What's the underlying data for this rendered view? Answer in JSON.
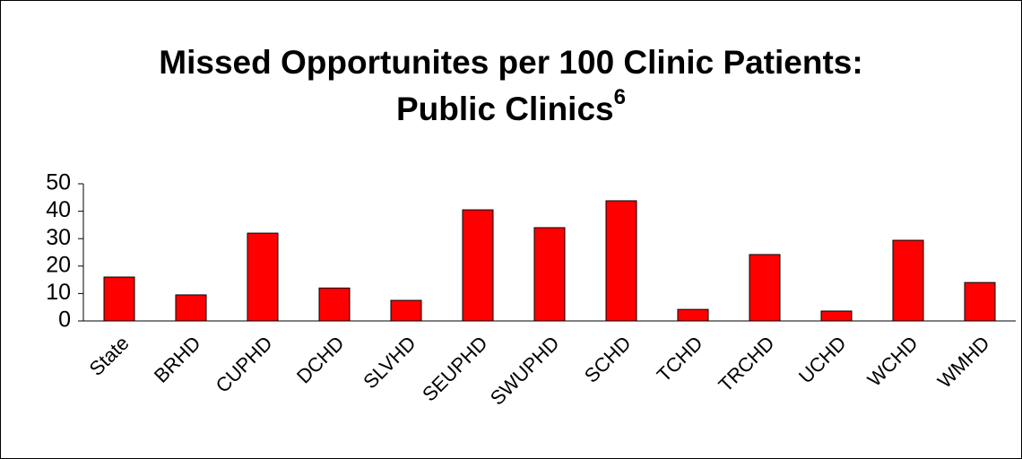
{
  "chart_data": {
    "type": "bar",
    "title_lines": [
      "Missed Opportunites per 100 Clinic Patients:",
      "Public Clinics"
    ],
    "title_superscript": "6",
    "categories": [
      "State",
      "BRHD",
      "CUPHD",
      "DCHD",
      "SLVHD",
      "SEUPHD",
      "SWUPHD",
      "SCHD",
      "TCHD",
      "TRCHD",
      "UCHD",
      "WCHD",
      "WMHD"
    ],
    "values": [
      16,
      9.5,
      32,
      12,
      7.5,
      40.5,
      34,
      43.8,
      4.2,
      24.2,
      3.6,
      29.4,
      14
    ],
    "color": "#ff0000",
    "ylim": [
      0,
      50
    ],
    "yticks": [
      0,
      10,
      20,
      30,
      40,
      50
    ],
    "grid": false
  }
}
